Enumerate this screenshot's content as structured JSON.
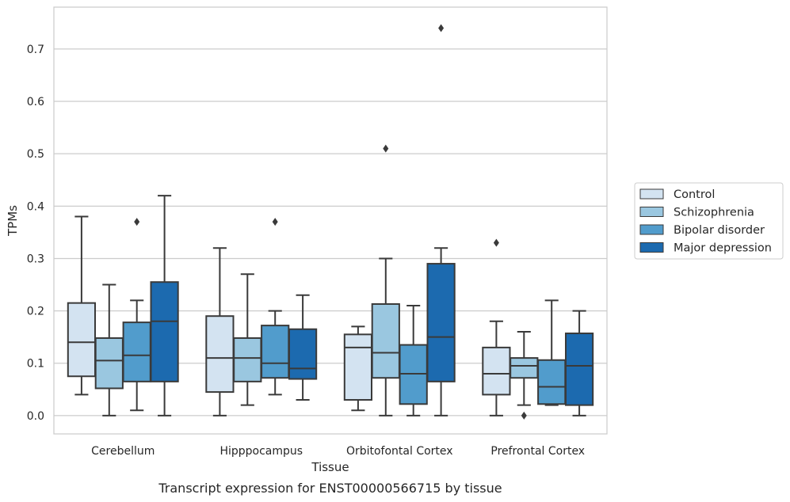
{
  "chart_data": {
    "type": "box",
    "title": "",
    "caption": "Transcript expression for ENST00000566715 by tissue",
    "xlabel": "Tissue",
    "ylabel": "TPMs",
    "ylim": [
      -0.035,
      0.78
    ],
    "yticks": [
      "0.0",
      "0.1",
      "0.2",
      "0.3",
      "0.4",
      "0.5",
      "0.6",
      "0.7"
    ],
    "grid": true,
    "legend_position": "right",
    "categories": [
      "Cerebellum",
      "Hipppocampus",
      "Orbitofontal Cortex",
      "Prefrontal Cortex"
    ],
    "series": [
      {
        "name": "Control",
        "color": "#d3e3f1",
        "boxes": [
          {
            "whisker_low": 0.04,
            "q1": 0.075,
            "median": 0.14,
            "q3": 0.215,
            "whisker_high": 0.38,
            "outliers": []
          },
          {
            "whisker_low": 0.0,
            "q1": 0.045,
            "median": 0.11,
            "q3": 0.19,
            "whisker_high": 0.32,
            "outliers": []
          },
          {
            "whisker_low": 0.01,
            "q1": 0.03,
            "median": 0.13,
            "q3": 0.155,
            "whisker_high": 0.17,
            "outliers": []
          },
          {
            "whisker_low": 0.0,
            "q1": 0.04,
            "median": 0.08,
            "q3": 0.13,
            "whisker_high": 0.18,
            "outliers": [
              0.33
            ]
          }
        ]
      },
      {
        "name": "Schizophrenia",
        "color": "#9ac7e0",
        "boxes": [
          {
            "whisker_low": 0.0,
            "q1": 0.052,
            "median": 0.105,
            "q3": 0.148,
            "whisker_high": 0.25,
            "outliers": []
          },
          {
            "whisker_low": 0.02,
            "q1": 0.065,
            "median": 0.11,
            "q3": 0.148,
            "whisker_high": 0.27,
            "outliers": []
          },
          {
            "whisker_low": 0.0,
            "q1": 0.072,
            "median": 0.12,
            "q3": 0.213,
            "whisker_high": 0.3,
            "outliers": [
              0.51
            ]
          },
          {
            "whisker_low": 0.02,
            "q1": 0.072,
            "median": 0.095,
            "q3": 0.11,
            "whisker_high": 0.16,
            "outliers": [
              0.0
            ]
          }
        ]
      },
      {
        "name": "Bipolar disorder",
        "color": "#519ccc",
        "boxes": [
          {
            "whisker_low": 0.01,
            "q1": 0.065,
            "median": 0.115,
            "q3": 0.178,
            "whisker_high": 0.22,
            "outliers": [
              0.37
            ]
          },
          {
            "whisker_low": 0.04,
            "q1": 0.072,
            "median": 0.1,
            "q3": 0.172,
            "whisker_high": 0.2,
            "outliers": [
              0.37
            ]
          },
          {
            "whisker_low": 0.0,
            "q1": 0.022,
            "median": 0.08,
            "q3": 0.135,
            "whisker_high": 0.21,
            "outliers": []
          },
          {
            "whisker_low": 0.02,
            "q1": 0.022,
            "median": 0.055,
            "q3": 0.106,
            "whisker_high": 0.22,
            "outliers": []
          }
        ]
      },
      {
        "name": "Major depression",
        "color": "#1c6aaf",
        "boxes": [
          {
            "whisker_low": 0.0,
            "q1": 0.065,
            "median": 0.18,
            "q3": 0.255,
            "whisker_high": 0.42,
            "outliers": []
          },
          {
            "whisker_low": 0.03,
            "q1": 0.07,
            "median": 0.09,
            "q3": 0.165,
            "whisker_high": 0.23,
            "outliers": []
          },
          {
            "whisker_low": 0.0,
            "q1": 0.065,
            "median": 0.15,
            "q3": 0.29,
            "whisker_high": 0.32,
            "outliers": [
              0.74
            ]
          },
          {
            "whisker_low": 0.0,
            "q1": 0.02,
            "median": 0.095,
            "q3": 0.157,
            "whisker_high": 0.2,
            "outliers": []
          }
        ]
      }
    ]
  }
}
